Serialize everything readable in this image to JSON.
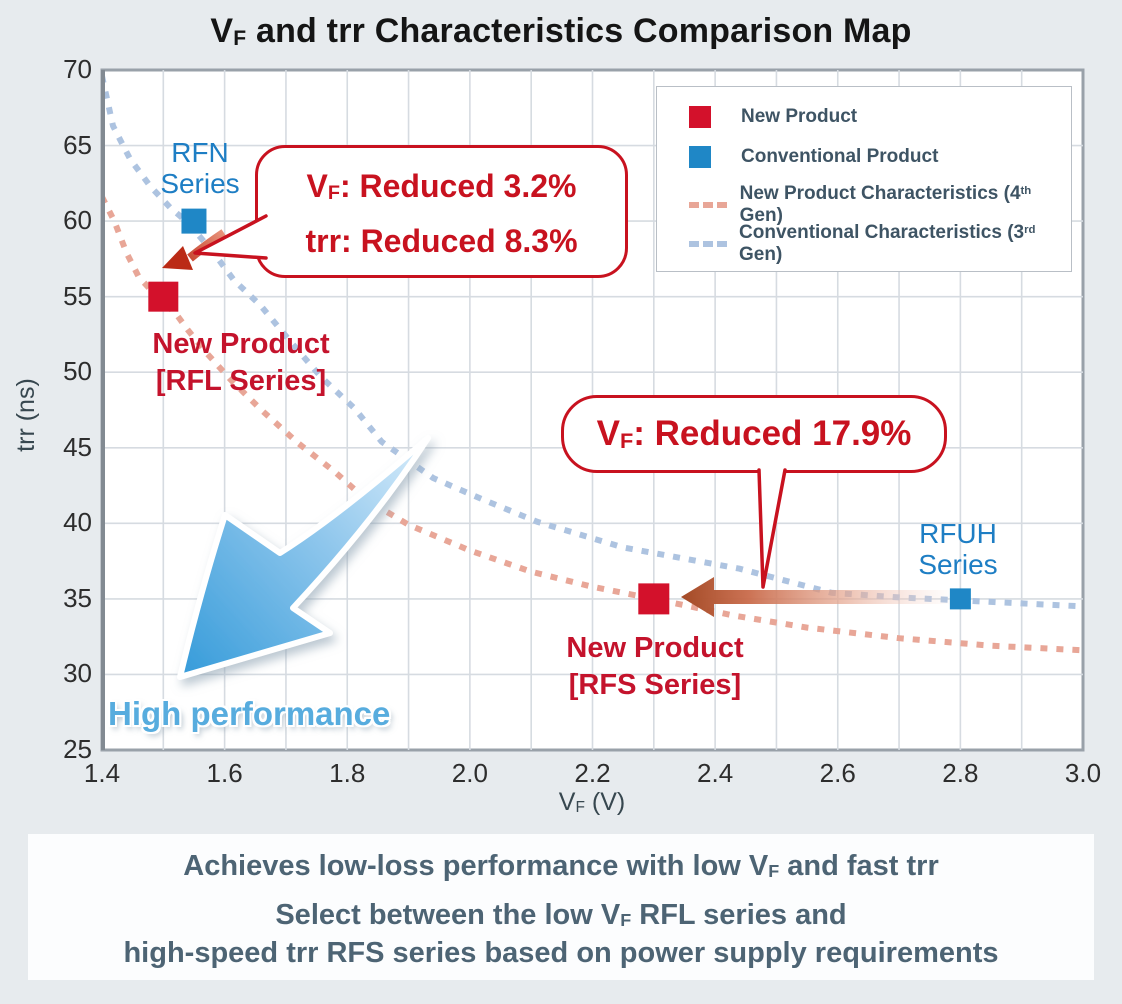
{
  "title": {
    "pre": "V",
    "sub": "F",
    "post": " and trr Characteristics Comparison Map"
  },
  "chart_data": {
    "type": "scatter",
    "title": "VF and trr Characteristics Comparison Map",
    "xlabel": {
      "pre": "V",
      "sub": "F",
      "post": " (V)"
    },
    "ylabel": "trr (ns)",
    "xlim": [
      1.4,
      3.0
    ],
    "ylim": [
      25,
      70
    ],
    "x_ticks": [
      "1.4",
      "1.6",
      "1.8",
      "2.0",
      "2.2",
      "2.4",
      "2.6",
      "2.8",
      "3.0"
    ],
    "y_ticks": [
      "70",
      "65",
      "60",
      "55",
      "50",
      "45",
      "40",
      "35",
      "30",
      "25"
    ],
    "x_grid_step": 0.1,
    "y_grid_step": 5,
    "grid": true,
    "legend_position": "top-right",
    "points": [
      {
        "label": "RFN Series",
        "series": "Conventional Product",
        "x": 1.55,
        "y": 60,
        "marker_size": 25
      },
      {
        "label": "New Product [RFL Series]",
        "series": "New Product",
        "x": 1.5,
        "y": 55,
        "marker_size": 30
      },
      {
        "label": "New Product [RFS Series]",
        "series": "New Product",
        "x": 2.3,
        "y": 35,
        "marker_size": 31
      },
      {
        "label": "RFUH Series",
        "series": "Conventional Product",
        "x": 2.8,
        "y": 35,
        "marker_size": 21
      }
    ],
    "curves": [
      {
        "name": "New Product Characteristics (4th Gen)",
        "color": "#e8a697",
        "points": [
          [
            1.4,
            61.6
          ],
          [
            1.42,
            60.0
          ],
          [
            1.44,
            57.9
          ],
          [
            1.46,
            56.3
          ],
          [
            1.49,
            55.0
          ],
          [
            1.52,
            53.9
          ],
          [
            1.54,
            52.8
          ],
          [
            1.57,
            51.3
          ],
          [
            1.61,
            49.5
          ],
          [
            1.66,
            47.5
          ],
          [
            1.72,
            45.3
          ],
          [
            1.78,
            43.4
          ],
          [
            1.83,
            41.6
          ],
          [
            1.9,
            39.9
          ],
          [
            2.0,
            38.2
          ],
          [
            2.1,
            36.8
          ],
          [
            2.2,
            35.8
          ],
          [
            2.3,
            35.0
          ],
          [
            2.43,
            33.9
          ],
          [
            2.55,
            33.1
          ],
          [
            2.7,
            32.4
          ],
          [
            2.85,
            31.9
          ],
          [
            3.0,
            31.6
          ]
        ]
      },
      {
        "name": "Conventional Characteristics (3rd Gen)",
        "color": "#adc3e0",
        "points": [
          [
            1.4,
            69.6
          ],
          [
            1.418,
            66.3
          ],
          [
            1.446,
            64.1
          ],
          [
            1.479,
            62.3
          ],
          [
            1.511,
            60.9
          ],
          [
            1.54,
            59.9
          ],
          [
            1.582,
            57.9
          ],
          [
            1.615,
            56.1
          ],
          [
            1.659,
            54.4
          ],
          [
            1.708,
            52.0
          ],
          [
            1.757,
            49.7
          ],
          [
            1.812,
            47.6
          ],
          [
            1.856,
            45.4
          ],
          [
            1.94,
            43.0
          ],
          [
            2.02,
            41.6
          ],
          [
            2.11,
            40.1
          ],
          [
            2.25,
            38.4
          ],
          [
            2.44,
            37.0
          ],
          [
            2.59,
            35.4
          ],
          [
            2.7,
            35.1
          ],
          [
            2.8,
            34.9
          ],
          [
            2.9,
            34.7
          ],
          [
            3.0,
            34.5
          ]
        ]
      }
    ],
    "annotations": [
      {
        "text": "VF: Reduced 3.2% / trr: Reduced 8.3%",
        "applies_to": "RFN Series vs RFL Series"
      },
      {
        "text": "VF: Reduced 17.9%",
        "applies_to": "RFUH Series vs RFS Series"
      },
      {
        "text": "High performance",
        "direction": "toward low VF and low trr"
      }
    ]
  },
  "legend": {
    "items": [
      {
        "swatch": "square",
        "color": "#d3112b",
        "label": "New Product"
      },
      {
        "swatch": "square",
        "color": "#1f87c6",
        "label": "Conventional Product"
      },
      {
        "swatch": "dash",
        "color": "#e8a697",
        "label_pre": "New Product Characteristics (4",
        "label_sup": "th",
        "label_post": " Gen)"
      },
      {
        "swatch": "dash",
        "color": "#adc3e0",
        "label_pre": "Conventional Characteristics (3",
        "label_sup": "rd",
        "label_post": " Gen)"
      }
    ]
  },
  "callouts": {
    "rfl": {
      "line1_pre": "V",
      "line1_sub": "F",
      "line1_post": ": Reduced 3.2%",
      "line2": "trr: Reduced 8.3%"
    },
    "rfs": {
      "pre": "V",
      "sub": "F",
      "post": ": Reduced 17.9%"
    }
  },
  "point_labels": {
    "rfn": {
      "line1": "RFN",
      "line2": "Series"
    },
    "rfl": {
      "line1": "New Product",
      "line2": "[RFL Series]"
    },
    "rfs": {
      "line1": "New Product",
      "line2": "[RFS Series]"
    },
    "rfuh": {
      "line1": "RFUH",
      "line2": "Series"
    }
  },
  "annotation": {
    "high_performance": "High performance"
  },
  "footer": {
    "line1_pre": "Achieves low-loss performance with low V",
    "line1_sub": "F",
    "line1_post": " and fast trr",
    "line2_pre": "Select between the low V",
    "line2_sub": "F",
    "line2_post": " RFL series and",
    "line3": "high-speed trr RFS series based on power supply requirements"
  },
  "colors": {
    "series": {
      "New Product": "#d3112b",
      "Conventional Product": "#1f87c6"
    },
    "callout_red": "#c8121f",
    "grid": "#d6dbe1",
    "plot_border": "#99a1a9",
    "background": "#e7ebee",
    "footer_text": "#4d6474",
    "high_performance_blue": "#57acde"
  }
}
